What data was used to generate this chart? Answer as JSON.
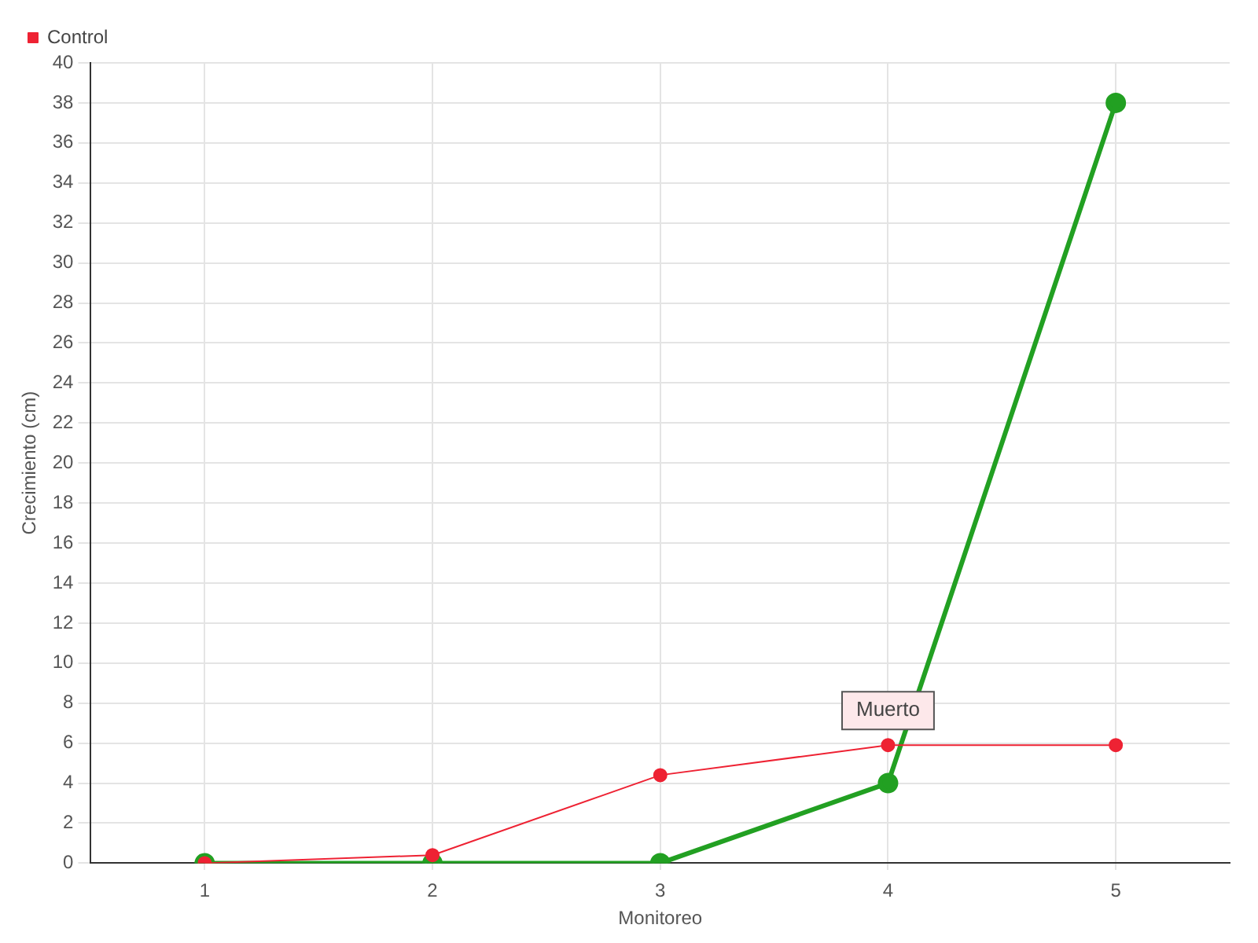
{
  "chart_data": {
    "type": "line",
    "xlabel": "Monitoreo",
    "ylabel": "Crecimiento (cm)",
    "categories": [
      "1",
      "2",
      "3",
      "4",
      "5"
    ],
    "series": [
      {
        "color": "#22a022",
        "values": [
          0,
          0,
          0,
          4,
          38
        ]
      },
      {
        "name": "Control",
        "color": "#ee2233",
        "values": [
          0,
          0.4,
          4.4,
          5.9,
          5.9
        ]
      }
    ],
    "ylim": [
      0,
      40
    ],
    "yticks": [
      0,
      2,
      4,
      6,
      8,
      10,
      12,
      14,
      16,
      18,
      20,
      22,
      24,
      26,
      28,
      30,
      32,
      34,
      36,
      38,
      40
    ],
    "grid": true,
    "legend": "top left",
    "marker": "circle",
    "annotations": [
      {
        "text": "Muerto",
        "x": "4",
        "y": 5.9
      }
    ]
  }
}
